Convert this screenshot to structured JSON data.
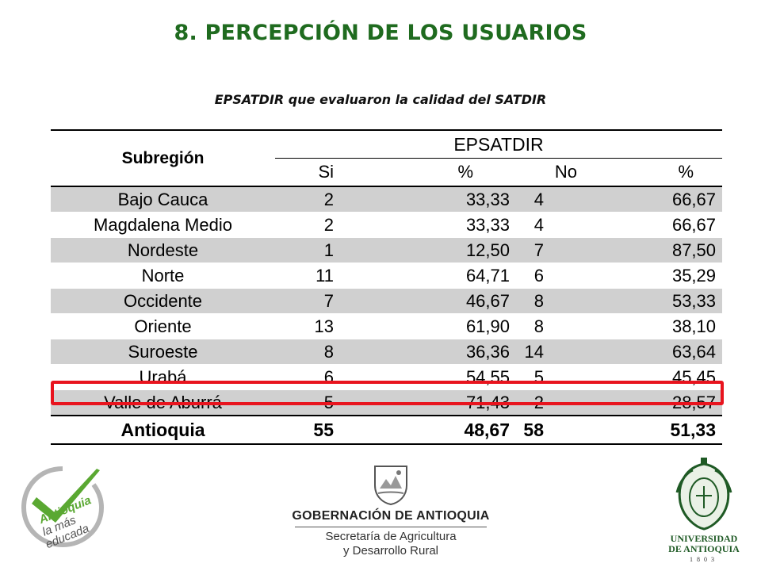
{
  "title": "8. PERCEPCIÓN DE LOS USUARIOS",
  "subtitle": "EPSATDIR que evaluaron la calidad del SATDIR",
  "table": {
    "row_header": "Subregión",
    "group_header": "EPSATDIR",
    "columns": [
      "Si",
      "%",
      "No",
      "%"
    ],
    "rows": [
      {
        "name": "Bajo Cauca",
        "si": "2",
        "si_pct": "33,33",
        "no": "4",
        "no_pct": "66,67"
      },
      {
        "name": "Magdalena Medio",
        "si": "2",
        "si_pct": "33,33",
        "no": "4",
        "no_pct": "66,67"
      },
      {
        "name": "Nordeste",
        "si": "1",
        "si_pct": "12,50",
        "no": "7",
        "no_pct": "87,50"
      },
      {
        "name": "Norte",
        "si": "11",
        "si_pct": "64,71",
        "no": "6",
        "no_pct": "35,29"
      },
      {
        "name": "Occidente",
        "si": "7",
        "si_pct": "46,67",
        "no": "8",
        "no_pct": "53,33"
      },
      {
        "name": "Oriente",
        "si": "13",
        "si_pct": "61,90",
        "no": "8",
        "no_pct": "38,10"
      },
      {
        "name": "Suroeste",
        "si": "8",
        "si_pct": "36,36",
        "no": "14",
        "no_pct": "63,64"
      },
      {
        "name": "Urabá",
        "si": "6",
        "si_pct": "54,55",
        "no": "5",
        "no_pct": "45,45"
      },
      {
        "name": "Valle de Aburrá",
        "si": "5",
        "si_pct": "71,43",
        "no": "2",
        "no_pct": "28,57"
      }
    ],
    "total": {
      "name": "Antioquia",
      "si": "55",
      "si_pct": "48,67",
      "no": "58",
      "no_pct": "51,33"
    },
    "highlighted_row": "Valle de Aburrá"
  },
  "logos": {
    "left": {
      "icon": "check-badge-icon",
      "text": [
        "Antioquia",
        "la más",
        "educada"
      ]
    },
    "center": {
      "icon": "coat-of-arms-icon",
      "name": "GOBERNACIÓN DE ANTIOQUIA",
      "line1": "Secretaría de Agricultura",
      "line2": "y Desarrollo Rural"
    },
    "right": {
      "icon": "university-seal-icon",
      "name1": "UNIVERSIDAD",
      "name2": "DE ANTIOQUIA",
      "year": "1803"
    }
  },
  "colors": {
    "title": "#1f6b1f",
    "row_shade": "#d0d0d0",
    "highlight": "#e8141e",
    "logo_green": "#5aa832",
    "udea_green": "#1f5a25"
  }
}
